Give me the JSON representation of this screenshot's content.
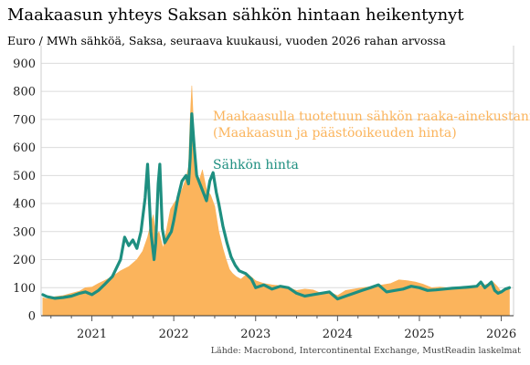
{
  "title": "Maakaasun yhteys Saksan sähkön hintaan heikentynyt",
  "subtitle": "Euro / MWh sähköä, Saksa, seuraava kuukausi, vuoden 2026 rahan arvossa",
  "source": "Lähde: Macrobond, Intercontinental Exchange,  MustReadin laskelmat",
  "colors": {
    "raw_cost": "#fbb45c",
    "price": "#1e8f80",
    "grid": "#dcdcdc"
  },
  "chart_data": {
    "type": "area",
    "title": "Maakaasun yhteys Saksan sähkön hintaan heikentynyt",
    "subtitle": "Euro / MWh sähköä, Saksa, seuraava kuukausi, vuoden 2026 rahan arvossa",
    "ylim": [
      0,
      950
    ],
    "y_ticks": [
      0,
      100,
      200,
      300,
      400,
      500,
      600,
      700,
      800,
      900
    ],
    "xlim": [
      2020.38,
      2026.15
    ],
    "x_ticks": [
      2021,
      2022,
      2023,
      2024,
      2025,
      2026
    ],
    "x_tick_labels": [
      "2021",
      "2022",
      "2023",
      "2024",
      "2025",
      "2026"
    ],
    "grid": "horizontal",
    "annotations": [
      {
        "lines": [
          "Maakaasulla tuotetuun sähkön raaka-ainekustannus",
          "(Maakaasun ja päästöoikeuden hinta)"
        ],
        "series": "raw_cost"
      },
      {
        "lines": [
          "Sähkön hinta"
        ],
        "series": "price"
      }
    ],
    "series": [
      {
        "name": "Maakaasulla tuotetuun sähkön raaka-ainekustannus (Maakaasun ja päästöoikeuden hinta)",
        "key": "raw_cost",
        "type": "area",
        "x": [
          2020.4,
          2020.45,
          2020.55,
          2020.65,
          2020.75,
          2020.85,
          2020.92,
          2021.0,
          2021.08,
          2021.15,
          2021.25,
          2021.35,
          2021.45,
          2021.55,
          2021.62,
          2021.68,
          2021.72,
          2021.75,
          2021.78,
          2021.82,
          2021.87,
          2021.92,
          2021.96,
          2022.0,
          2022.05,
          2022.1,
          2022.15,
          2022.18,
          2022.2,
          2022.22,
          2022.25,
          2022.3,
          2022.35,
          2022.4,
          2022.45,
          2022.5,
          2022.55,
          2022.6,
          2022.64,
          2022.68,
          2022.72,
          2022.76,
          2022.82,
          2022.9,
          2023.0,
          2023.1,
          2023.2,
          2023.35,
          2023.5,
          2023.6,
          2023.7,
          2023.8,
          2023.9,
          2024.0,
          2024.1,
          2024.2,
          2024.3,
          2024.45,
          2024.55,
          2024.65,
          2024.75,
          2024.85,
          2024.95,
          2025.05,
          2025.15,
          2025.25,
          2025.4,
          2025.55,
          2025.7,
          2025.8,
          2025.9,
          2025.95,
          2026.0,
          2026.05,
          2026.1
        ],
        "values": [
          65,
          60,
          68,
          72,
          80,
          88,
          100,
          102,
          115,
          125,
          140,
          160,
          175,
          200,
          230,
          280,
          330,
          360,
          280,
          300,
          240,
          320,
          380,
          400,
          420,
          450,
          490,
          530,
          700,
          820,
          620,
          470,
          520,
          450,
          430,
          390,
          300,
          240,
          200,
          165,
          150,
          140,
          130,
          150,
          125,
          115,
          110,
          105,
          90,
          95,
          92,
          80,
          85,
          72,
          90,
          95,
          100,
          105,
          110,
          115,
          128,
          125,
          120,
          112,
          100,
          102,
          98,
          100,
          105,
          110,
          120,
          105,
          85,
          95,
          105
        ]
      },
      {
        "name": "Sähkön hinta",
        "key": "price",
        "type": "line",
        "x": [
          2020.4,
          2020.45,
          2020.55,
          2020.65,
          2020.75,
          2020.85,
          2020.92,
          2021.0,
          2021.08,
          2021.15,
          2021.25,
          2021.35,
          2021.4,
          2021.45,
          2021.5,
          2021.55,
          2021.6,
          2021.65,
          2021.68,
          2021.72,
          2021.76,
          2021.78,
          2021.81,
          2021.83,
          2021.86,
          2021.89,
          2021.93,
          2021.97,
          2022.0,
          2022.05,
          2022.1,
          2022.15,
          2022.18,
          2022.2,
          2022.22,
          2022.25,
          2022.28,
          2022.32,
          2022.36,
          2022.4,
          2022.44,
          2022.48,
          2022.52,
          2022.55,
          2022.6,
          2022.65,
          2022.7,
          2022.75,
          2022.8,
          2022.88,
          2022.95,
          2023.0,
          2023.1,
          2023.2,
          2023.3,
          2023.4,
          2023.5,
          2023.6,
          2023.7,
          2023.8,
          2023.9,
          2024.0,
          2024.1,
          2024.2,
          2024.3,
          2024.4,
          2024.5,
          2024.6,
          2024.7,
          2024.8,
          2024.9,
          2025.0,
          2025.1,
          2025.2,
          2025.3,
          2025.4,
          2025.5,
          2025.6,
          2025.7,
          2025.75,
          2025.8,
          2025.85,
          2025.88,
          2025.92,
          2025.96,
          2026.0,
          2026.05,
          2026.1
        ],
        "values": [
          75,
          68,
          62,
          65,
          70,
          80,
          85,
          75,
          90,
          110,
          140,
          200,
          280,
          250,
          270,
          240,
          300,
          420,
          540,
          300,
          200,
          260,
          470,
          540,
          310,
          260,
          280,
          300,
          340,
          420,
          480,
          500,
          470,
          560,
          720,
          600,
          500,
          470,
          440,
          410,
          480,
          510,
          440,
          400,
          320,
          260,
          210,
          180,
          160,
          150,
          130,
          100,
          110,
          95,
          105,
          100,
          80,
          70,
          75,
          80,
          85,
          60,
          70,
          80,
          90,
          100,
          110,
          85,
          90,
          95,
          105,
          100,
          90,
          92,
          95,
          98,
          100,
          102,
          105,
          120,
          100,
          112,
          120,
          90,
          80,
          85,
          95,
          100
        ]
      }
    ]
  }
}
